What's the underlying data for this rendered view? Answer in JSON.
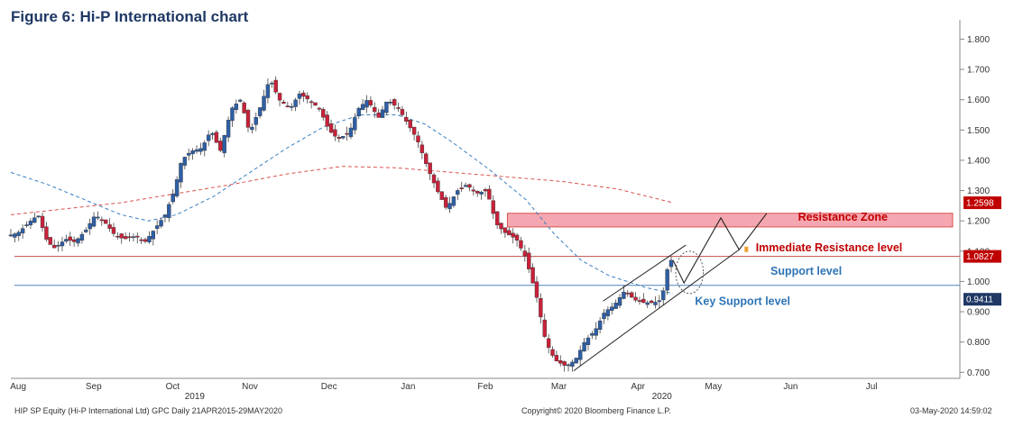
{
  "figure_title": "Figure 6: Hi-P International chart",
  "footer": {
    "left": "HIP SP Equity (Hi-P International Ltd) GPC  Daily 21APR2015-29MAY2020",
    "center": "Copyright© 2020 Bloomberg Finance L.P.",
    "right": "03-May-2020 14:59:02"
  },
  "chart_data": {
    "type": "candlestick",
    "title": "",
    "y_axis": {
      "min": 0.68,
      "max": 1.84,
      "ticks": [
        "1.800",
        "1.700",
        "1.600",
        "1.500",
        "1.400",
        "1.300",
        "1.200",
        "1.100",
        "1.000",
        "0.900",
        "0.800",
        "0.700"
      ]
    },
    "x_axis": {
      "months": [
        {
          "label": "Aug",
          "x": 0.4
        },
        {
          "label": "Sep",
          "x": 4.5
        },
        {
          "label": "Oct",
          "x": 8.8
        },
        {
          "label": "Nov",
          "x": 13.0
        },
        {
          "label": "Dec",
          "x": 17.3
        },
        {
          "label": "Jan",
          "x": 21.6
        },
        {
          "label": "Feb",
          "x": 25.8
        },
        {
          "label": "Mar",
          "x": 29.8
        },
        {
          "label": "Apr",
          "x": 34.1
        },
        {
          "label": "May",
          "x": 38.2
        },
        {
          "label": "Jun",
          "x": 42.4
        },
        {
          "label": "Jul",
          "x": 46.8
        }
      ],
      "years": [
        {
          "label": "2019",
          "x": 10.0
        },
        {
          "label": "2020",
          "x": 35.4
        }
      ],
      "x_max": 51.6
    },
    "price_points": [
      [
        0.0,
        1.15
      ],
      [
        0.6,
        1.16
      ],
      [
        1.3,
        1.2
      ],
      [
        1.7,
        1.22
      ],
      [
        2.2,
        1.13
      ],
      [
        2.6,
        1.11
      ],
      [
        3.2,
        1.14
      ],
      [
        3.7,
        1.13
      ],
      [
        4.3,
        1.17
      ],
      [
        4.8,
        1.22
      ],
      [
        5.4,
        1.19
      ],
      [
        5.9,
        1.15
      ],
      [
        6.4,
        1.14
      ],
      [
        7.0,
        1.15
      ],
      [
        7.5,
        1.13
      ],
      [
        8.0,
        1.17
      ],
      [
        8.6,
        1.22
      ],
      [
        9.1,
        1.3
      ],
      [
        9.5,
        1.4
      ],
      [
        10.0,
        1.43
      ],
      [
        10.6,
        1.44
      ],
      [
        11.1,
        1.5
      ],
      [
        11.6,
        1.43
      ],
      [
        12.2,
        1.57
      ],
      [
        12.7,
        1.6
      ],
      [
        13.2,
        1.49
      ],
      [
        13.8,
        1.58
      ],
      [
        14.3,
        1.67
      ],
      [
        14.8,
        1.6
      ],
      [
        15.4,
        1.57
      ],
      [
        15.9,
        1.62
      ],
      [
        16.4,
        1.6
      ],
      [
        17.0,
        1.57
      ],
      [
        17.5,
        1.5
      ],
      [
        18.0,
        1.47
      ],
      [
        18.6,
        1.49
      ],
      [
        19.1,
        1.57
      ],
      [
        19.6,
        1.6
      ],
      [
        20.2,
        1.54
      ],
      [
        20.7,
        1.6
      ],
      [
        21.3,
        1.57
      ],
      [
        21.8,
        1.52
      ],
      [
        22.3,
        1.47
      ],
      [
        22.9,
        1.37
      ],
      [
        23.4,
        1.3
      ],
      [
        23.9,
        1.24
      ],
      [
        24.5,
        1.3
      ],
      [
        25.0,
        1.32
      ],
      [
        25.5,
        1.29
      ],
      [
        26.1,
        1.3
      ],
      [
        26.6,
        1.19
      ],
      [
        27.1,
        1.16
      ],
      [
        27.7,
        1.14
      ],
      [
        28.2,
        1.08
      ],
      [
        28.8,
        0.95
      ],
      [
        29.3,
        0.8
      ],
      [
        29.8,
        0.74
      ],
      [
        30.4,
        0.72
      ],
      [
        30.9,
        0.74
      ],
      [
        31.4,
        0.8
      ],
      [
        32.0,
        0.84
      ],
      [
        32.5,
        0.9
      ],
      [
        33.0,
        0.92
      ],
      [
        33.6,
        0.97
      ],
      [
        34.1,
        0.94
      ],
      [
        34.6,
        0.93
      ],
      [
        35.2,
        0.93
      ],
      [
        35.6,
        0.94
      ],
      [
        36.0,
        1.07
      ]
    ],
    "series": [
      {
        "type": "line",
        "style": "dashed",
        "color": "#3a7fc1",
        "points": [
          [
            0,
            1.36
          ],
          [
            2,
            1.32
          ],
          [
            4,
            1.27
          ],
          [
            6,
            1.22
          ],
          [
            7.5,
            1.2
          ],
          [
            9,
            1.22
          ],
          [
            11,
            1.28
          ],
          [
            13,
            1.36
          ],
          [
            15,
            1.44
          ],
          [
            17,
            1.51
          ],
          [
            19,
            1.55
          ],
          [
            21,
            1.55
          ],
          [
            22.5,
            1.52
          ],
          [
            24,
            1.46
          ],
          [
            26,
            1.37
          ],
          [
            28,
            1.27
          ],
          [
            29.5,
            1.16
          ],
          [
            31,
            1.07
          ],
          [
            32.5,
            1.02
          ],
          [
            34.5,
            0.98
          ],
          [
            36,
            0.96
          ]
        ]
      },
      {
        "type": "line",
        "style": "dashed",
        "color": "#d9534f",
        "points": [
          [
            0,
            1.22
          ],
          [
            3,
            1.24
          ],
          [
            6,
            1.26
          ],
          [
            9,
            1.29
          ],
          [
            12,
            1.32
          ],
          [
            15,
            1.355
          ],
          [
            18,
            1.38
          ],
          [
            21,
            1.375
          ],
          [
            24,
            1.36
          ],
          [
            27,
            1.345
          ],
          [
            30,
            1.33
          ],
          [
            33,
            1.305
          ],
          [
            36,
            1.26
          ]
        ]
      }
    ],
    "horizontal_lines": [
      {
        "y": 1.0827,
        "color": "#c0504d"
      },
      {
        "y": 0.987,
        "color": "#4f81bd"
      }
    ],
    "resistance_zone": {
      "y_low": 1.18,
      "y_high": 1.225,
      "x_start": 27.0
    },
    "channel": {
      "lower": [
        [
          30.6,
          0.705
        ],
        [
          39.6,
          1.105
        ]
      ],
      "upper": [
        [
          32.2,
          0.935
        ],
        [
          36.7,
          1.12
        ]
      ]
    },
    "projection": [
      [
        36.0,
        1.07
      ],
      [
        36.6,
        0.995
      ],
      [
        38.6,
        1.21
      ],
      [
        39.6,
        1.105
      ],
      [
        41.1,
        1.225
      ]
    ],
    "circle": {
      "x": 36.9,
      "y": 1.03,
      "rx_x": 0.75,
      "ry_y": 0.07
    },
    "price_badges": [
      {
        "text": "1.2598",
        "y": 1.2598,
        "color": "#c00000"
      },
      {
        "text": "1.0827",
        "y": 1.0827,
        "color": "#c00000"
      },
      {
        "text": "0.9411",
        "y": 0.9411,
        "color": "#1f3864"
      }
    ],
    "annotations": [
      {
        "text": "Resistance Zone",
        "style": "red",
        "x": 42.8,
        "y": 1.2
      },
      {
        "text": "Immediate Resistance level",
        "style": "red",
        "x": 40.5,
        "y": 1.1
      },
      {
        "text": "Support level",
        "style": "blue",
        "x": 41.3,
        "y": 1.022
      },
      {
        "text": "Key Support level",
        "style": "blue",
        "x": 37.2,
        "y": 0.923
      }
    ]
  }
}
